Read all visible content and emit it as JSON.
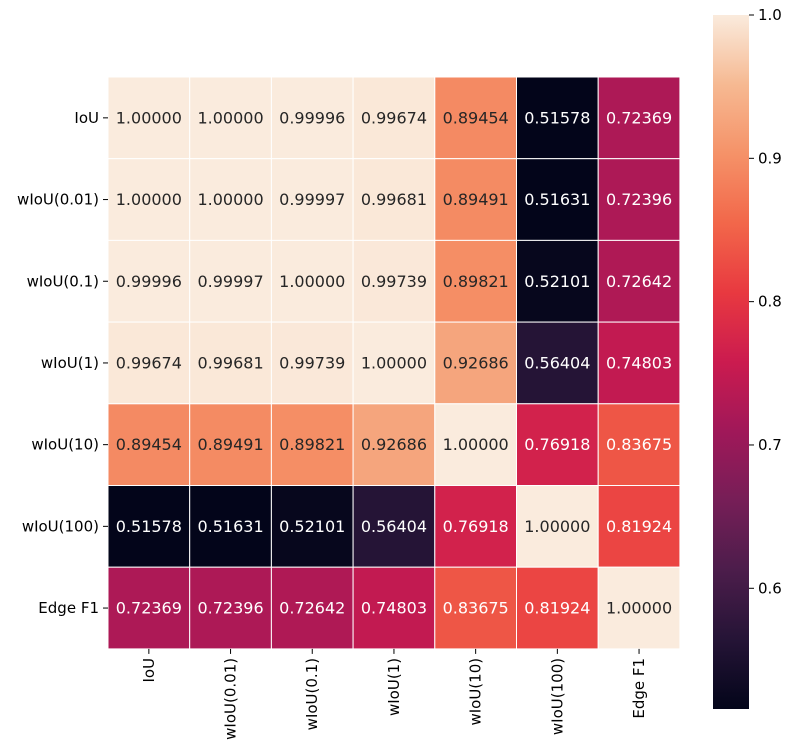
{
  "chart_data": {
    "type": "heatmap",
    "title": "",
    "xlabel": "",
    "ylabel": "",
    "x_categories": [
      "IoU",
      "wIoU(0.01)",
      "wIoU(0.1)",
      "wIoU(1)",
      "wIoU(10)",
      "wIoU(100)",
      "Edge F1"
    ],
    "y_categories": [
      "IoU",
      "wIoU(0.01)",
      "wIoU(0.1)",
      "wIoU(1)",
      "wIoU(10)",
      "wIoU(100)",
      "Edge F1"
    ],
    "values": [
      [
        1.0,
        1.0,
        0.99996,
        0.99674,
        0.89454,
        0.51578,
        0.72369
      ],
      [
        1.0,
        1.0,
        0.99997,
        0.99681,
        0.89491,
        0.51631,
        0.72396
      ],
      [
        0.99996,
        0.99997,
        1.0,
        0.99739,
        0.89821,
        0.52101,
        0.72642
      ],
      [
        0.99674,
        0.99681,
        0.99739,
        1.0,
        0.92686,
        0.56404,
        0.74803
      ],
      [
        0.89454,
        0.89491,
        0.89821,
        0.92686,
        1.0,
        0.76918,
        0.83675
      ],
      [
        0.51578,
        0.51631,
        0.52101,
        0.56404,
        0.76918,
        1.0,
        0.81924
      ],
      [
        0.72369,
        0.72396,
        0.72642,
        0.74803,
        0.83675,
        0.81924,
        1.0
      ]
    ],
    "value_format_decimals": 5,
    "colormap": "rocket",
    "colorbar": {
      "vmin": 0.51578,
      "vmax": 1.0,
      "ticks": [
        0.6,
        0.7,
        0.8,
        0.9,
        1.0
      ],
      "tick_labels": [
        "0.6",
        "0.7",
        "0.8",
        "0.9",
        "1.0"
      ]
    },
    "grid_lines": "white"
  }
}
